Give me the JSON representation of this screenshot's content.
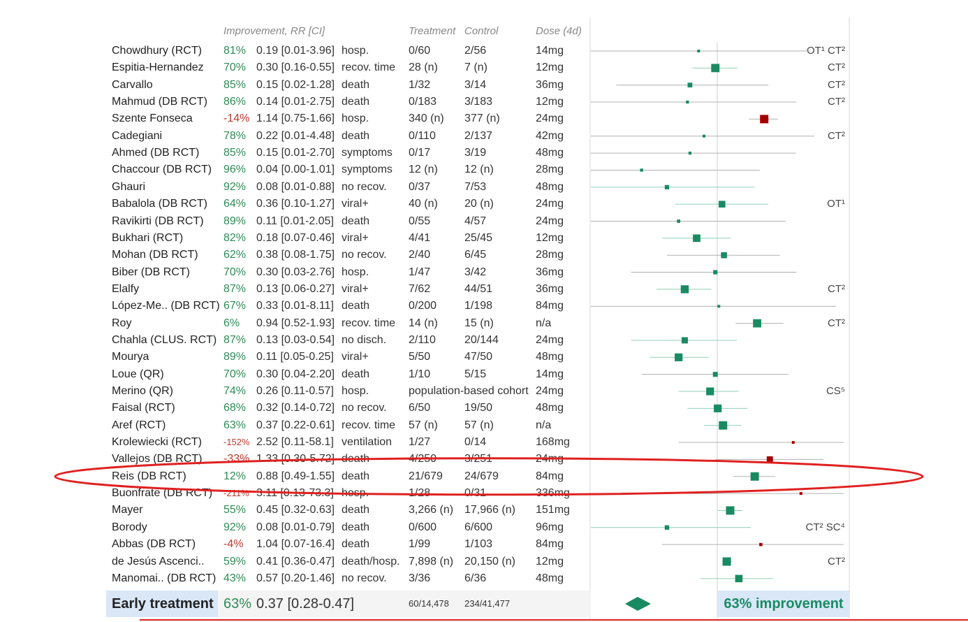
{
  "headers": {
    "improvement": "Improvement, RR [CI]",
    "treatment": "Treatment",
    "control": "Control",
    "dose": "Dose (4d)"
  },
  "chart_data": {
    "type": "forest",
    "xscale": "log",
    "xlim": [
      0.01,
      10
    ],
    "reference": 1,
    "studies": [
      {
        "name": "Chowdhury (RCT)",
        "improvement": "81%",
        "rr_ci": "0.19 [0.01-3.96]",
        "rr": 0.19,
        "lo": 0.01,
        "hi": 3.96,
        "outcome": "hosp.",
        "treatment": "0/60",
        "control": "2/56",
        "dose": "14mg",
        "note": "OT¹ CT²"
      },
      {
        "name": "Espitia-Hernandez",
        "improvement": "70%",
        "rr_ci": "0.30 [0.16-0.55]",
        "rr": 0.3,
        "lo": 0.16,
        "hi": 0.55,
        "outcome": "recov. time",
        "treatment": "28 (n)",
        "control": "7 (n)",
        "dose": "12mg",
        "note": "CT²"
      },
      {
        "name": "Carvallo",
        "improvement": "85%",
        "rr_ci": "0.15 [0.02-1.28]",
        "rr": 0.15,
        "lo": 0.02,
        "hi": 1.28,
        "outcome": "death",
        "treatment": "1/32",
        "control": "3/14",
        "dose": "36mg",
        "note": "CT²"
      },
      {
        "name": "Mahmud (DB RCT)",
        "improvement": "86%",
        "rr_ci": "0.14 [0.01-2.75]",
        "rr": 0.14,
        "lo": 0.01,
        "hi": 2.75,
        "outcome": "death",
        "treatment": "0/183",
        "control": "3/183",
        "dose": "12mg",
        "note": "CT²"
      },
      {
        "name": "Szente Fonseca",
        "improvement": "-14%",
        "rr_ci": "1.14 [0.75-1.66]",
        "rr": 1.14,
        "lo": 0.75,
        "hi": 1.66,
        "outcome": "hosp.",
        "treatment": "340 (n)",
        "control": "377 (n)",
        "dose": "24mg",
        "note": ""
      },
      {
        "name": "Cadegiani",
        "improvement": "78%",
        "rr_ci": "0.22 [0.01-4.48]",
        "rr": 0.22,
        "lo": 0.01,
        "hi": 4.48,
        "outcome": "death",
        "treatment": "0/110",
        "control": "2/137",
        "dose": "42mg",
        "note": "CT²"
      },
      {
        "name": "Ahmed (DB RCT)",
        "improvement": "85%",
        "rr_ci": "0.15 [0.01-2.70]",
        "rr": 0.15,
        "lo": 0.01,
        "hi": 2.7,
        "outcome": "symptoms",
        "treatment": "0/17",
        "control": "3/19",
        "dose": "48mg",
        "note": ""
      },
      {
        "name": "Chaccour (DB RCT)",
        "improvement": "96%",
        "rr_ci": "0.04 [0.00-1.01]",
        "rr": 0.04,
        "lo": 0.004,
        "hi": 1.01,
        "outcome": "symptoms",
        "treatment": "12 (n)",
        "control": "12 (n)",
        "dose": "28mg",
        "note": ""
      },
      {
        "name": "Ghauri",
        "improvement": "92%",
        "rr_ci": "0.08 [0.01-0.88]",
        "rr": 0.08,
        "lo": 0.01,
        "hi": 0.88,
        "outcome": "no recov.",
        "treatment": "0/37",
        "control": "7/53",
        "dose": "48mg",
        "note": ""
      },
      {
        "name": "Babalola (DB RCT)",
        "improvement": "64%",
        "rr_ci": "0.36 [0.10-1.27]",
        "rr": 0.36,
        "lo": 0.1,
        "hi": 1.27,
        "outcome": "viral+",
        "treatment": "40 (n)",
        "control": "20 (n)",
        "dose": "24mg",
        "note": "OT¹"
      },
      {
        "name": "Ravikirti (DB RCT)",
        "improvement": "89%",
        "rr_ci": "0.11 [0.01-2.05]",
        "rr": 0.11,
        "lo": 0.01,
        "hi": 2.05,
        "outcome": "death",
        "treatment": "0/55",
        "control": "4/57",
        "dose": "24mg",
        "note": ""
      },
      {
        "name": "Bukhari (RCT)",
        "improvement": "82%",
        "rr_ci": "0.18 [0.07-0.46]",
        "rr": 0.18,
        "lo": 0.07,
        "hi": 0.46,
        "outcome": "viral+",
        "treatment": "4/41",
        "control": "25/45",
        "dose": "12mg",
        "note": ""
      },
      {
        "name": "Mohan (DB RCT)",
        "improvement": "62%",
        "rr_ci": "0.38 [0.08-1.75]",
        "rr": 0.38,
        "lo": 0.08,
        "hi": 1.75,
        "outcome": "no recov.",
        "treatment": "2/40",
        "control": "6/45",
        "dose": "28mg",
        "note": ""
      },
      {
        "name": "Biber (DB RCT)",
        "improvement": "70%",
        "rr_ci": "0.30 [0.03-2.76]",
        "rr": 0.3,
        "lo": 0.03,
        "hi": 2.76,
        "outcome": "hosp.",
        "treatment": "1/47",
        "control": "3/42",
        "dose": "36mg",
        "note": ""
      },
      {
        "name": "Elalfy",
        "improvement": "87%",
        "rr_ci": "0.13 [0.06-0.27]",
        "rr": 0.13,
        "lo": 0.06,
        "hi": 0.27,
        "outcome": "viral+",
        "treatment": "7/62",
        "control": "44/51",
        "dose": "36mg",
        "note": "CT²"
      },
      {
        "name": "López-Me.. (DB RCT)",
        "improvement": "67%",
        "rr_ci": "0.33 [0.01-8.11]",
        "rr": 0.33,
        "lo": 0.01,
        "hi": 8.11,
        "outcome": "death",
        "treatment": "0/200",
        "control": "1/198",
        "dose": "84mg",
        "note": ""
      },
      {
        "name": "Roy",
        "improvement": "6%",
        "rr_ci": "0.94 [0.52-1.93]",
        "rr": 0.94,
        "lo": 0.52,
        "hi": 1.93,
        "outcome": "recov. time",
        "treatment": "14 (n)",
        "control": "15 (n)",
        "dose": "n/a",
        "note": "CT²"
      },
      {
        "name": "Chahla (CLUS. RCT)",
        "improvement": "87%",
        "rr_ci": "0.13 [0.03-0.54]",
        "rr": 0.13,
        "lo": 0.03,
        "hi": 0.54,
        "outcome": "no disch.",
        "treatment": "2/110",
        "control": "20/144",
        "dose": "24mg",
        "note": ""
      },
      {
        "name": "Mourya",
        "improvement": "89%",
        "rr_ci": "0.11 [0.05-0.25]",
        "rr": 0.11,
        "lo": 0.05,
        "hi": 0.25,
        "outcome": "viral+",
        "treatment": "5/50",
        "control": "47/50",
        "dose": "48mg",
        "note": ""
      },
      {
        "name": "Loue (QR)",
        "improvement": "70%",
        "rr_ci": "0.30 [0.04-2.20]",
        "rr": 0.3,
        "lo": 0.04,
        "hi": 2.2,
        "outcome": "death",
        "treatment": "1/10",
        "control": "5/15",
        "dose": "14mg",
        "note": ""
      },
      {
        "name": "Merino (QR)",
        "improvement": "74%",
        "rr_ci": "0.26 [0.11-0.57]",
        "rr": 0.26,
        "lo": 0.11,
        "hi": 0.57,
        "outcome": "hosp.",
        "treatment": "population-based cohort",
        "control": "",
        "dose": "24mg",
        "note": "CS⁵"
      },
      {
        "name": "Faisal (RCT)",
        "improvement": "68%",
        "rr_ci": "0.32 [0.14-0.72]",
        "rr": 0.32,
        "lo": 0.14,
        "hi": 0.72,
        "outcome": "no recov.",
        "treatment": "6/50",
        "control": "19/50",
        "dose": "48mg",
        "note": ""
      },
      {
        "name": "Aref (RCT)",
        "improvement": "63%",
        "rr_ci": "0.37 [0.22-0.61]",
        "rr": 0.37,
        "lo": 0.22,
        "hi": 0.61,
        "outcome": "recov. time",
        "treatment": "57 (n)",
        "control": "57 (n)",
        "dose": "n/a",
        "note": ""
      },
      {
        "name": "Krolewiecki (RCT)",
        "improvement": "-152%",
        "rr_ci": "2.52 [0.11-58.1]",
        "rr": 2.52,
        "lo": 0.11,
        "hi": 58.1,
        "outcome": "ventilation",
        "treatment": "1/27",
        "control": "0/14",
        "dose": "168mg",
        "note": ""
      },
      {
        "name": "Vallejos (DB RCT)",
        "improvement": "-33%",
        "rr_ci": "1.33 [0.30-5.72]",
        "rr": 1.33,
        "lo": 0.3,
        "hi": 5.72,
        "outcome": "death",
        "treatment": "4/250",
        "control": "3/251",
        "dose": "24mg",
        "note": ""
      },
      {
        "name": "Reis (DB RCT)",
        "improvement": "12%",
        "rr_ci": "0.88 [0.49-1.55]",
        "rr": 0.88,
        "lo": 0.49,
        "hi": 1.55,
        "outcome": "death",
        "treatment": "21/679",
        "control": "24/679",
        "dose": "84mg",
        "note": ""
      },
      {
        "name": "Buonfrate (DB RCT)",
        "improvement": "-211%",
        "rr_ci": "3.11 [0.13-73.3]",
        "rr": 3.11,
        "lo": 0.13,
        "hi": 73.3,
        "outcome": "hosp.",
        "treatment": "1/28",
        "control": "0/31",
        "dose": "336mg",
        "note": ""
      },
      {
        "name": "Mayer",
        "improvement": "55%",
        "rr_ci": "0.45 [0.32-0.63]",
        "rr": 0.45,
        "lo": 0.32,
        "hi": 0.63,
        "outcome": "death",
        "treatment": "3,266 (n)",
        "control": "17,966 (n)",
        "dose": "151mg",
        "note": ""
      },
      {
        "name": "Borody",
        "improvement": "92%",
        "rr_ci": "0.08 [0.01-0.79]",
        "rr": 0.08,
        "lo": 0.01,
        "hi": 0.79,
        "outcome": "death",
        "treatment": "0/600",
        "control": "6/600",
        "dose": "96mg",
        "note": "CT² SC⁴"
      },
      {
        "name": "Abbas (DB RCT)",
        "improvement": "-4%",
        "rr_ci": "1.04 [0.07-16.4]",
        "rr": 1.04,
        "lo": 0.07,
        "hi": 16.4,
        "outcome": "death",
        "treatment": "1/99",
        "control": "1/103",
        "dose": "84mg",
        "note": ""
      },
      {
        "name": "de Jesús Ascenci..",
        "improvement": "59%",
        "rr_ci": "0.41 [0.36-0.47]",
        "rr": 0.41,
        "lo": 0.36,
        "hi": 0.47,
        "outcome": "death/hosp.",
        "treatment": "7,898 (n)",
        "control": "20,150 (n)",
        "dose": "12mg",
        "note": "CT²"
      },
      {
        "name": "Manomai.. (DB RCT)",
        "improvement": "43%",
        "rr_ci": "0.57 [0.20-1.46]",
        "rr": 0.57,
        "lo": 0.2,
        "hi": 1.46,
        "outcome": "no recov.",
        "treatment": "3/36",
        "control": "6/36",
        "dose": "48mg",
        "note": ""
      }
    ],
    "summary": {
      "label": "Early treatment",
      "improvement": "63%",
      "rr_ci": "0.37 [0.28-0.47]",
      "rr": 0.37,
      "lo": 0.28,
      "hi": 0.47,
      "treatment": "60/14,478",
      "control": "234/41,477",
      "result": "63% improvement"
    },
    "highlighted_study": "Reis (DB RCT)",
    "colors": {
      "positive": "#1a8a63",
      "negative": "#a30000",
      "ci_line": "#b0b0b0",
      "highlight": "#e02020"
    }
  }
}
